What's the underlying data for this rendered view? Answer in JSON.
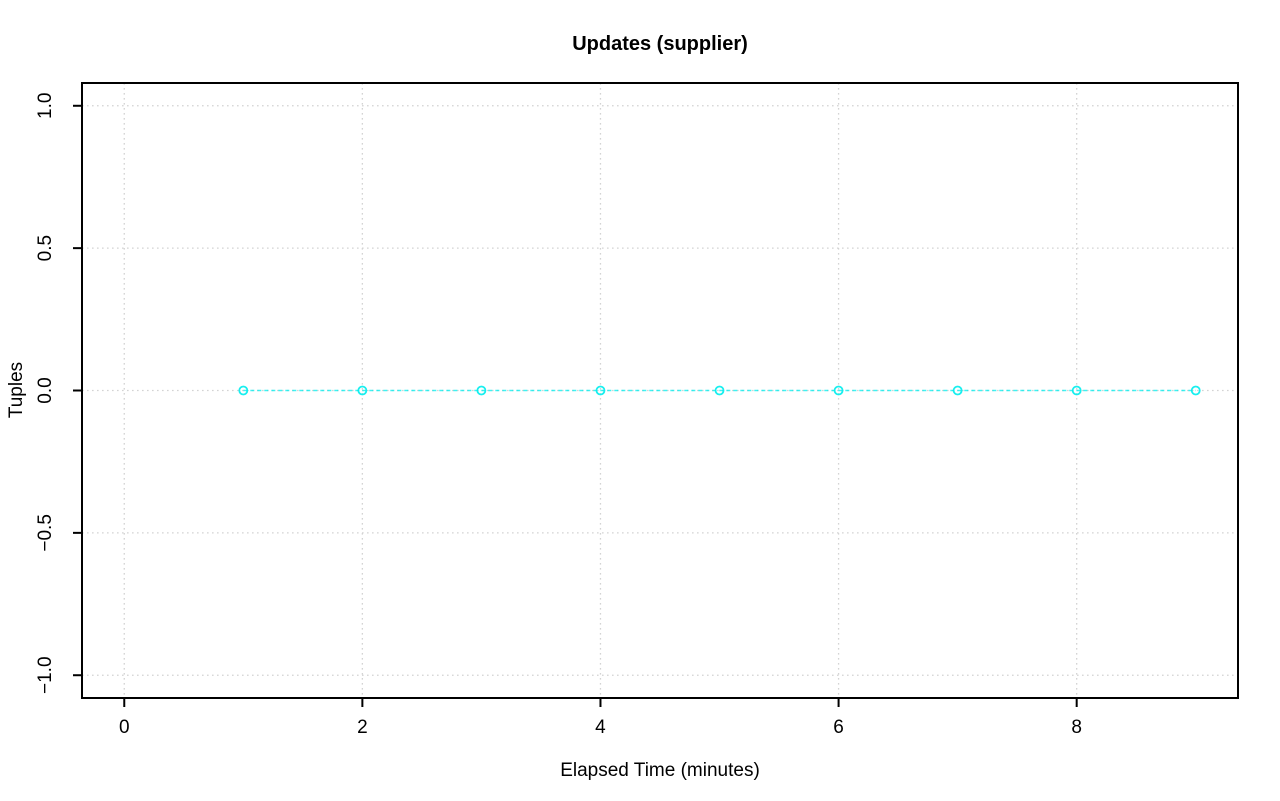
{
  "chart_data": {
    "type": "line",
    "title": "Updates (supplier)",
    "xlabel": "Elapsed Time (minutes)",
    "ylabel": "Tuples",
    "series": [
      {
        "name": "Updates (supplier)",
        "x": [
          1,
          2,
          3,
          4,
          5,
          6,
          7,
          8,
          9
        ],
        "y": [
          0,
          0,
          0,
          0,
          0,
          0,
          0,
          0,
          0
        ],
        "color": "#00EDED",
        "line_style": "dashed",
        "marker": "open-circle"
      }
    ],
    "xlim": [
      -0.355,
      9.355
    ],
    "ylim": [
      -1.08,
      1.08
    ],
    "xticks": {
      "values": [
        0,
        2,
        4,
        6,
        8
      ],
      "labels": [
        "0",
        "2",
        "4",
        "6",
        "8"
      ]
    },
    "yticks": {
      "values": [
        -1.0,
        -0.5,
        0.0,
        0.5,
        1.0
      ],
      "labels": [
        "−1.0",
        "−0.5",
        "0.0",
        "0.5",
        "1.0"
      ]
    },
    "grid": {
      "visible": true,
      "style": "dotted",
      "color": "#D3D3D3"
    },
    "axis_color": "#000000",
    "background": "#FFFFFF",
    "legend": null
  }
}
